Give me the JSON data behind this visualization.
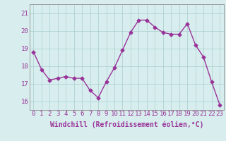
{
  "x": [
    0,
    1,
    2,
    3,
    4,
    5,
    6,
    7,
    8,
    9,
    10,
    11,
    12,
    13,
    14,
    15,
    16,
    17,
    18,
    19,
    20,
    21,
    22,
    23
  ],
  "y": [
    18.8,
    17.8,
    17.2,
    17.3,
    17.4,
    17.3,
    17.3,
    16.6,
    16.2,
    17.1,
    17.9,
    18.9,
    19.9,
    20.6,
    20.6,
    20.2,
    19.9,
    19.8,
    19.8,
    20.4,
    19.2,
    18.5,
    17.1,
    15.8
  ],
  "line_color": "#993399",
  "marker": "D",
  "marker_size": 2.5,
  "bg_color": "#d8eeee",
  "grid_color": "#aacccc",
  "xlabel": "Windchill (Refroidissement éolien,°C)",
  "ylim": [
    15.5,
    21.5
  ],
  "yticks": [
    16,
    17,
    18,
    19,
    20,
    21
  ],
  "xlim": [
    -0.5,
    23.5
  ],
  "xlabel_fontsize": 7,
  "tick_fontsize": 6.5,
  "line_width": 1.0
}
